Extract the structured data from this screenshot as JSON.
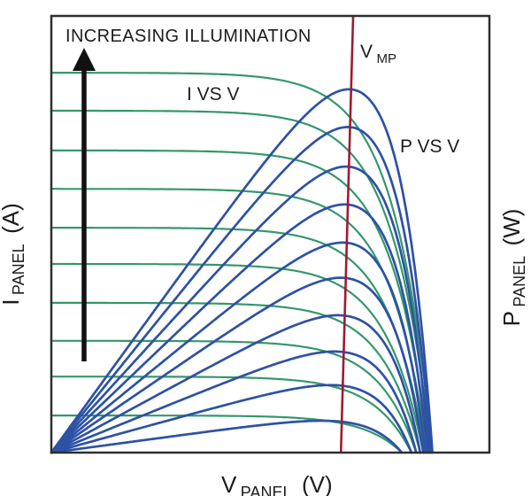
{
  "colors": {
    "iv_green": "#35976d",
    "pv_blue": "#2d52a5",
    "vmp_red": "#9e1b33",
    "text_black": "#1c1c1c",
    "frame_black": "#2e2e2e",
    "arrow_black": "#111111",
    "background": "#ffffff"
  },
  "chart_data": {
    "type": "line",
    "title": "",
    "annotations": {
      "increasing_illumination": "INCREASING ILLUMINATION",
      "iv_series_label": "I VS V",
      "pv_series_label": "P VS V",
      "vmp_label": {
        "main": "V",
        "sub": "MP"
      }
    },
    "axis_labels": {
      "x": {
        "main": "V",
        "sub": "PANEL",
        "suffix": "(V)"
      },
      "y_left": {
        "main": "I",
        "sub": "PANEL",
        "suffix": "(A)"
      },
      "y_right": {
        "main": "P",
        "sub": "PANEL",
        "suffix": "(W)"
      }
    },
    "axes": {
      "ticks": "none",
      "v_range_norm": [
        0,
        1
      ],
      "i_range_norm": [
        0,
        1
      ],
      "p_range_norm": [
        0,
        1
      ],
      "grid": false
    },
    "series": [
      {
        "name": "I VS V",
        "color_key": "iv_green",
        "curve_count": 10
      },
      {
        "name": "P VS V",
        "color_key": "pv_blue",
        "curve_count": 10
      }
    ],
    "illumination_curves": [
      {
        "isc": 0.87,
        "voc": 0.87
      },
      {
        "isc": 0.783,
        "voc": 0.867
      },
      {
        "isc": 0.692,
        "voc": 0.863
      },
      {
        "isc": 0.604,
        "voc": 0.859
      },
      {
        "isc": 0.515,
        "voc": 0.854
      },
      {
        "isc": 0.432,
        "voc": 0.849
      },
      {
        "isc": 0.343,
        "voc": 0.842
      },
      {
        "isc": 0.256,
        "voc": 0.833
      },
      {
        "isc": 0.174,
        "voc": 0.822
      },
      {
        "isc": 0.085,
        "voc": 0.8
      }
    ],
    "diode_vt": 0.088,
    "power_scale": 1.59,
    "vmp_line": {
      "top_frac": 0.689,
      "bottom_frac": 0.661
    }
  }
}
